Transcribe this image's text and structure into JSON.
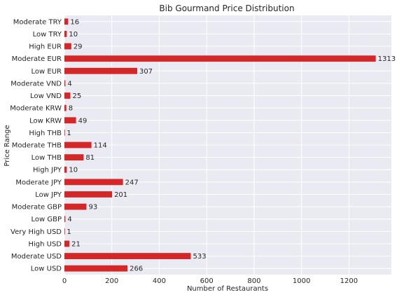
{
  "chart_data": {
    "type": "bar",
    "orientation": "horizontal",
    "title": "Bib Gourmand Price Distribution",
    "xlabel": "Number of Restaurants",
    "ylabel": "Price Range",
    "xlim": [
      0,
      1379
    ],
    "x_ticks": [
      0,
      200,
      400,
      600,
      800,
      1000,
      1200
    ],
    "grid": true,
    "bar_color": "#d62728",
    "background_color": "#eaeaf2",
    "categories": [
      "Low USD",
      "Moderate USD",
      "High USD",
      "Very High USD",
      "Low GBP",
      "Moderate GBP",
      "Low JPY",
      "Moderate JPY",
      "High JPY",
      "Low THB",
      "Moderate THB",
      "High THB",
      "Low KRW",
      "Moderate KRW",
      "Low VND",
      "Moderate VND",
      "Low EUR",
      "Moderate EUR",
      "High EUR",
      "Low TRY",
      "Moderate TRY"
    ],
    "values": [
      266,
      533,
      21,
      1,
      4,
      93,
      201,
      247,
      10,
      81,
      114,
      1,
      49,
      8,
      25,
      4,
      307,
      1313,
      29,
      10,
      16
    ]
  }
}
